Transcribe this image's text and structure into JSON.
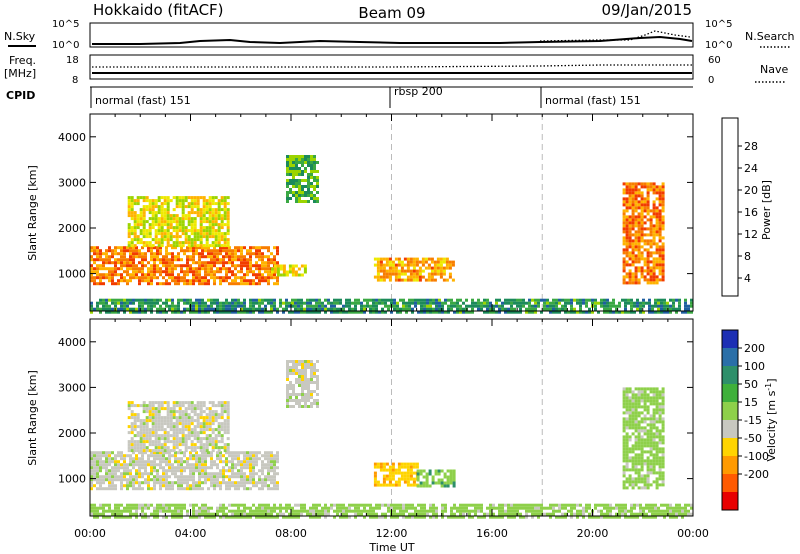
{
  "header": {
    "station": "Hokkaido (fitACF)",
    "beam": "Beam 09",
    "date": "09/Jan/2015"
  },
  "top_panels": {
    "nsky_label": "N.Sky",
    "nsky_scale": [
      "10^5",
      "10^0"
    ],
    "nsearch_label": "N.Search",
    "freq_label": "Freq.",
    "freq_unit": "[MHz]",
    "freq_ticks": [
      "18",
      "8"
    ],
    "nave_ticks": [
      "60",
      "0"
    ],
    "nave_label": "Nave",
    "cpid_label": "CPID",
    "modes": [
      "normal (fast) 151",
      "rbsp 200",
      "normal (fast) 151"
    ]
  },
  "axes": {
    "x_ticks": [
      "00:00",
      "04:00",
      "08:00",
      "12:00",
      "16:00",
      "20:00",
      "00:00"
    ],
    "x_label": "Time UT",
    "y_ticks": [
      "1000",
      "2000",
      "3000",
      "4000"
    ],
    "y_label": "Slant Range [km]"
  },
  "power_scale": {
    "label": "Power [dB]",
    "ticks": [
      "28",
      "24",
      "20",
      "16",
      "12",
      "8",
      "4"
    ],
    "colors": [
      "#ff0000",
      "#f23b00",
      "#f87d00",
      "#ffb300",
      "#eee900",
      "#9cd400",
      "#3aa843",
      "#1c8a5a",
      "#1f5fa0",
      "#2336d0",
      "#1a1aff"
    ]
  },
  "velocity_scale": {
    "label": "Velocity [m s",
    "label_exp": "-1",
    "ticks": [
      "200",
      "100",
      "50",
      "15",
      "-15",
      "-50",
      "-100",
      "-200"
    ],
    "colors": [
      "#1c2fb4",
      "#2a6fa8",
      "#2e8f6a",
      "#3fb03a",
      "#8ed04a",
      "#c8c8c0",
      "#ffd400",
      "#ff9a00",
      "#ff5a00",
      "#e80000"
    ]
  },
  "chart_data": [
    {
      "type": "heatmap",
      "title": "Power [dB]",
      "xlabel": "Time UT",
      "ylabel": "Slant Range [km]",
      "xlim": [
        "00:00",
        "24:00"
      ],
      "ylim": [
        180,
        4500
      ],
      "regions": [
        {
          "t_start": 0.0,
          "t_end": 7.5,
          "range_low": 750,
          "range_high": 1600,
          "value_db": 26
        },
        {
          "t_start": 1.5,
          "t_end": 5.5,
          "range_low": 1600,
          "range_high": 2700,
          "value_db": 20
        },
        {
          "t_start": 7.2,
          "t_end": 8.6,
          "range_low": 1000,
          "range_high": 1200,
          "value_db": 20
        },
        {
          "t_start": 7.8,
          "t_end": 9.0,
          "range_low": 2600,
          "range_high": 3600,
          "value_db": 14
        },
        {
          "t_start": 11.3,
          "t_end": 14.5,
          "range_low": 850,
          "range_high": 1350,
          "value_db": 24
        },
        {
          "t_start": 21.2,
          "t_end": 22.8,
          "range_low": 800,
          "range_high": 3000,
          "value_db": 26
        },
        {
          "t_start": 0.0,
          "t_end": 24.0,
          "range_low": 180,
          "range_high": 450,
          "value_db": 12
        }
      ]
    },
    {
      "type": "heatmap",
      "title": "Velocity [m s-1]",
      "xlabel": "Time UT",
      "ylabel": "Slant Range [km]",
      "xlim": [
        "00:00",
        "24:00"
      ],
      "ylim": [
        180,
        4500
      ],
      "regions": [
        {
          "t_start": 0.0,
          "t_end": 7.5,
          "range_low": 750,
          "range_high": 1600,
          "value_ms": 0
        },
        {
          "t_start": 1.5,
          "t_end": 5.5,
          "range_low": 1600,
          "range_high": 2700,
          "value_ms": 0
        },
        {
          "t_start": 7.8,
          "t_end": 9.0,
          "range_low": 2600,
          "range_high": 3600,
          "value_ms": 0
        },
        {
          "t_start": 11.3,
          "t_end": 13.0,
          "range_low": 850,
          "range_high": 1350,
          "value_ms": -40
        },
        {
          "t_start": 13.0,
          "t_end": 14.5,
          "range_low": 850,
          "range_high": 1200,
          "value_ms": 40
        },
        {
          "t_start": 21.2,
          "t_end": 22.8,
          "range_low": 800,
          "range_high": 3000,
          "value_ms": 30
        },
        {
          "t_start": 0.0,
          "t_end": 24.0,
          "range_low": 180,
          "range_high": 450,
          "value_ms": 30
        }
      ]
    }
  ]
}
